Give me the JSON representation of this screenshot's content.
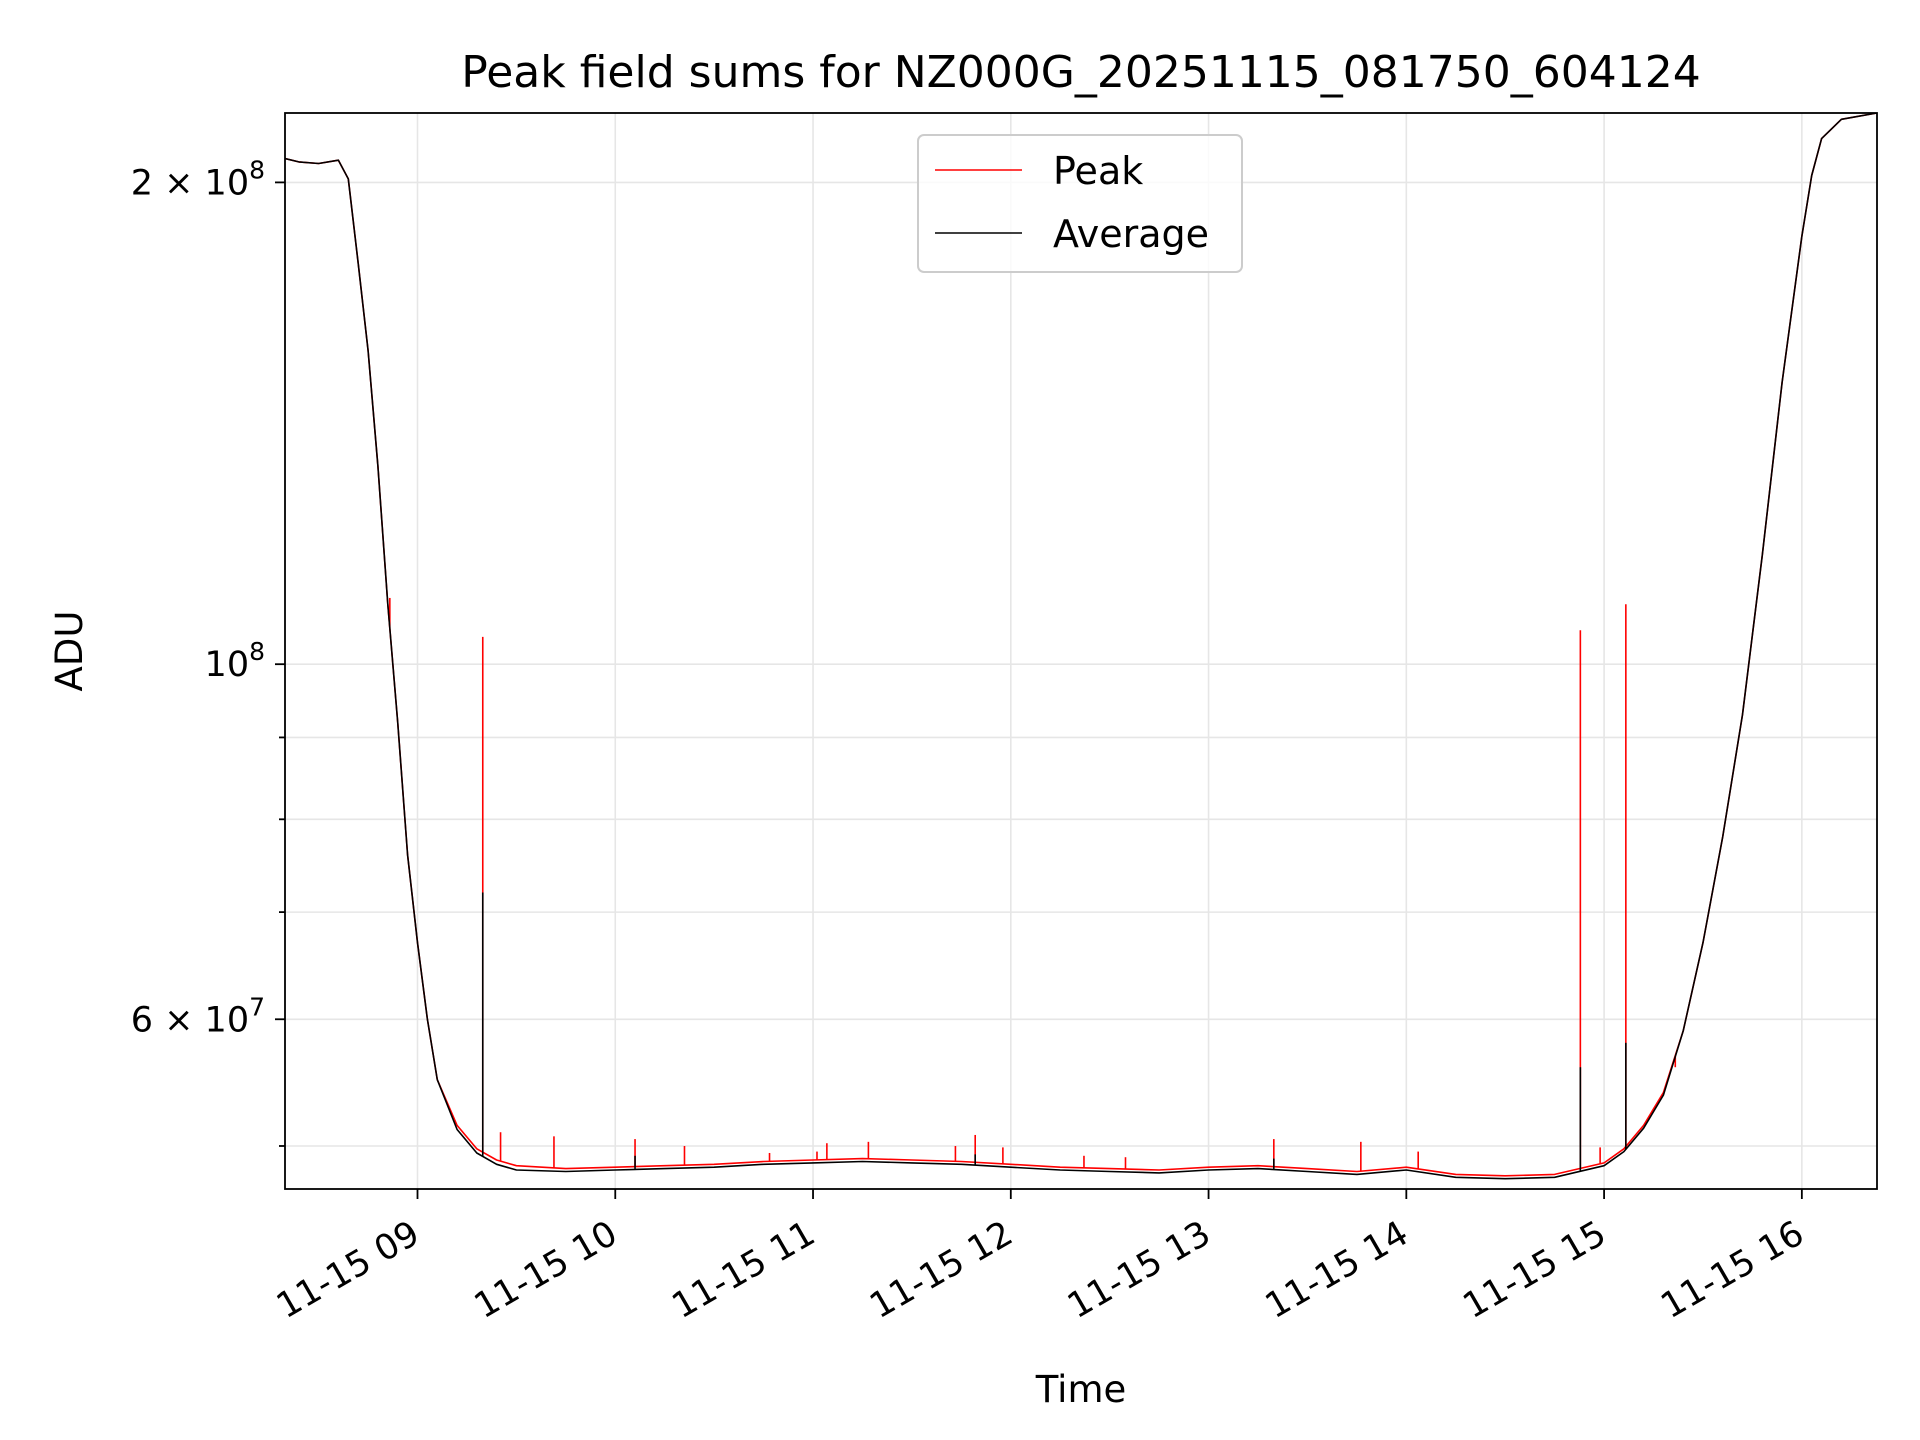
{
  "chart_data": {
    "type": "line",
    "title": "Peak field sums for NZ000G_20251115_081750_604124",
    "xlabel": "Time",
    "ylabel": "ADU",
    "x_unit": "hours",
    "xlim": [
      8.33,
      16.38
    ],
    "ylim": [
      47000000,
      221000000
    ],
    "yscale": "log",
    "grid": true,
    "legend_position": "upper-center",
    "x_ticks": [
      {
        "value": 9,
        "label": "11-15 09"
      },
      {
        "value": 10,
        "label": "11-15 10"
      },
      {
        "value": 11,
        "label": "11-15 11"
      },
      {
        "value": 12,
        "label": "11-15 12"
      },
      {
        "value": 13,
        "label": "11-15 13"
      },
      {
        "value": 14,
        "label": "11-15 14"
      },
      {
        "value": 15,
        "label": "11-15 15"
      },
      {
        "value": 16,
        "label": "11-15 16"
      }
    ],
    "y_major_ticks": [
      {
        "value": 200000000,
        "base": "2 × 10",
        "exp": "8"
      },
      {
        "value": 100000000,
        "base": "10",
        "exp": "8"
      },
      {
        "value": 60000000,
        "base": "6 × 10",
        "exp": "7"
      }
    ],
    "y_minor_ticks": [
      50000000,
      70000000,
      80000000,
      90000000
    ],
    "series": [
      {
        "name": "Peak",
        "color": "#ff0000",
        "points": [
          [
            8.33,
            207000000
          ],
          [
            8.4,
            206000000
          ],
          [
            8.5,
            205500000
          ],
          [
            8.6,
            206500000
          ],
          [
            8.65,
            201000000
          ],
          [
            8.7,
            178000000
          ],
          [
            8.75,
            157000000
          ],
          [
            8.8,
            133000000
          ],
          [
            8.85,
            109000000
          ],
          [
            8.9,
            92000000
          ],
          [
            8.95,
            76000000
          ],
          [
            9.0,
            67000000
          ],
          [
            9.05,
            60000000
          ],
          [
            9.1,
            55000000
          ],
          [
            9.2,
            51500000
          ],
          [
            9.3,
            49800000
          ],
          [
            9.4,
            49000000
          ],
          [
            9.5,
            48600000
          ],
          [
            9.75,
            48400000
          ],
          [
            10.0,
            48500000
          ],
          [
            10.25,
            48600000
          ],
          [
            10.5,
            48700000
          ],
          [
            10.75,
            48900000
          ],
          [
            11.0,
            49000000
          ],
          [
            11.25,
            49100000
          ],
          [
            11.5,
            49000000
          ],
          [
            11.75,
            48900000
          ],
          [
            12.0,
            48700000
          ],
          [
            12.25,
            48500000
          ],
          [
            12.5,
            48400000
          ],
          [
            12.75,
            48300000
          ],
          [
            13.0,
            48500000
          ],
          [
            13.25,
            48600000
          ],
          [
            13.5,
            48400000
          ],
          [
            13.75,
            48200000
          ],
          [
            14.0,
            48500000
          ],
          [
            14.25,
            48000000
          ],
          [
            14.5,
            47900000
          ],
          [
            14.75,
            48000000
          ],
          [
            15.0,
            48800000
          ],
          [
            15.1,
            49800000
          ],
          [
            15.2,
            51500000
          ],
          [
            15.3,
            54000000
          ],
          [
            15.4,
            59000000
          ],
          [
            15.5,
            67000000
          ],
          [
            15.6,
            78000000
          ],
          [
            15.7,
            93000000
          ],
          [
            15.8,
            117000000
          ],
          [
            15.9,
            150000000
          ],
          [
            16.0,
            185000000
          ],
          [
            16.05,
            202000000
          ],
          [
            16.1,
            213000000
          ],
          [
            16.2,
            219000000
          ],
          [
            16.38,
            221000000
          ]
        ],
        "spikes": [
          [
            8.86,
            110000000
          ],
          [
            9.33,
            104000000
          ],
          [
            9.42,
            51000000
          ],
          [
            9.69,
            50700000
          ],
          [
            10.1,
            50500000
          ],
          [
            10.35,
            50000000
          ],
          [
            10.78,
            49500000
          ],
          [
            11.02,
            49600000
          ],
          [
            11.07,
            50200000
          ],
          [
            11.28,
            50300000
          ],
          [
            11.72,
            50000000
          ],
          [
            11.82,
            50800000
          ],
          [
            11.96,
            49900000
          ],
          [
            12.37,
            49300000
          ],
          [
            12.58,
            49200000
          ],
          [
            13.33,
            50500000
          ],
          [
            13.77,
            50300000
          ],
          [
            14.06,
            49600000
          ],
          [
            14.88,
            105000000
          ],
          [
            14.98,
            49900000
          ],
          [
            15.11,
            109000000
          ],
          [
            15.36,
            56000000
          ]
        ]
      },
      {
        "name": "Average",
        "color": "#000000",
        "points": [
          [
            8.33,
            207000000
          ],
          [
            8.4,
            206000000
          ],
          [
            8.5,
            205500000
          ],
          [
            8.6,
            206500000
          ],
          [
            8.65,
            201000000
          ],
          [
            8.7,
            178000000
          ],
          [
            8.75,
            157000000
          ],
          [
            8.8,
            133000000
          ],
          [
            8.85,
            109000000
          ],
          [
            8.9,
            92000000
          ],
          [
            8.95,
            76000000
          ],
          [
            9.0,
            67000000
          ],
          [
            9.05,
            60000000
          ],
          [
            9.1,
            55000000
          ],
          [
            9.2,
            51200000
          ],
          [
            9.3,
            49500000
          ],
          [
            9.4,
            48700000
          ],
          [
            9.5,
            48300000
          ],
          [
            9.75,
            48200000
          ],
          [
            10.0,
            48300000
          ],
          [
            10.25,
            48400000
          ],
          [
            10.5,
            48500000
          ],
          [
            10.75,
            48700000
          ],
          [
            11.0,
            48800000
          ],
          [
            11.25,
            48900000
          ],
          [
            11.5,
            48800000
          ],
          [
            11.75,
            48700000
          ],
          [
            12.0,
            48500000
          ],
          [
            12.25,
            48300000
          ],
          [
            12.5,
            48200000
          ],
          [
            12.75,
            48100000
          ],
          [
            13.0,
            48300000
          ],
          [
            13.25,
            48400000
          ],
          [
            13.5,
            48200000
          ],
          [
            13.75,
            48000000
          ],
          [
            14.0,
            48300000
          ],
          [
            14.25,
            47800000
          ],
          [
            14.5,
            47700000
          ],
          [
            14.75,
            47800000
          ],
          [
            15.0,
            48600000
          ],
          [
            15.1,
            49600000
          ],
          [
            15.2,
            51300000
          ],
          [
            15.3,
            53800000
          ],
          [
            15.4,
            59000000
          ],
          [
            15.5,
            67000000
          ],
          [
            15.6,
            78000000
          ],
          [
            15.7,
            93000000
          ],
          [
            15.8,
            117000000
          ],
          [
            15.9,
            150000000
          ],
          [
            16.0,
            185000000
          ],
          [
            16.05,
            202000000
          ],
          [
            16.1,
            213000000
          ],
          [
            16.2,
            219000000
          ],
          [
            16.38,
            221000000
          ]
        ],
        "spikes": [
          [
            9.33,
            72000000
          ],
          [
            14.88,
            56000000
          ],
          [
            15.11,
            58000000
          ],
          [
            10.1,
            49300000
          ],
          [
            11.82,
            49400000
          ],
          [
            13.33,
            49100000
          ]
        ]
      }
    ]
  }
}
